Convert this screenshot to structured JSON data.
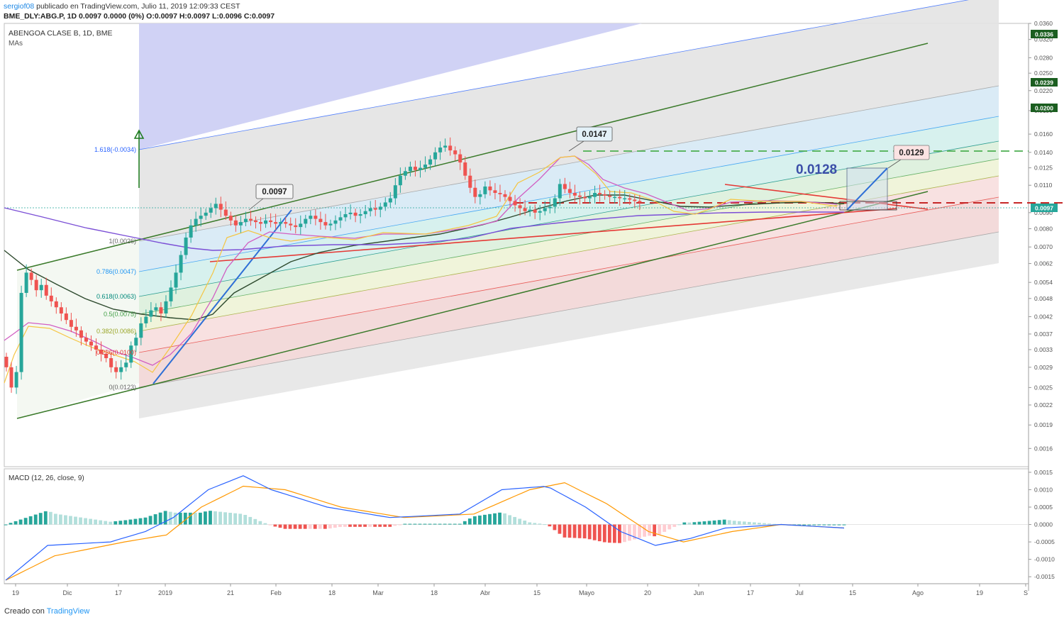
{
  "header": {
    "user": "sergiof08",
    "published": "publicado en TradingView.com, Julio 11, 2019 12:09:33 CEST",
    "ohlc_line": "BME_DLY:ABG.P, 1D 0.0097 0.0000 (0%) O:0.0097 H:0.0097 L:0.0096 C:0.0097"
  },
  "footer": {
    "prefix": "Creado con",
    "brand": "TradingView"
  },
  "colors": {
    "up": "#26a69a",
    "down": "#ef5350",
    "ma_fast": "#f5c542",
    "ma_mid": "#d15ec2",
    "ma_slow": "#2e4a2e",
    "ma_long": "#7b4fd6",
    "channel": "#3a7a2a",
    "trend_red": "#e53935",
    "trend_blue": "#2e6fd6",
    "macd": "#2962ff",
    "signal": "#ff9800"
  },
  "chart_data": [
    {
      "type": "candlestick",
      "title": "ABENGOA CLASE B, 1D, BME",
      "indicator_label": "MAs",
      "yscale": "log",
      "ylim": [
        0.0014,
        0.036
      ],
      "x_ticks": [
        "19",
        "Dic",
        "17",
        "2019",
        "21",
        "Feb",
        "18",
        "Mar",
        "18",
        "Abr",
        "15",
        "Mayo",
        "20",
        "Jun",
        "17",
        "Jul",
        "15",
        "Ago",
        "19",
        "S"
      ],
      "y_ticks": [
        "0.0360",
        "0.0320",
        "0.0280",
        "0.0250",
        "0.0220",
        "0.0190",
        "0.0160",
        "0.0140",
        "0.0125",
        "0.0110",
        "0.0090",
        "0.0080",
        "0.0070",
        "0.0062",
        "0.0054",
        "0.0048",
        "0.0042",
        "0.0037",
        "0.0033",
        "0.0029",
        "0.0025",
        "0.0022",
        "0.0019",
        "0.0016"
      ],
      "price_badges": [
        {
          "value": "0.0336",
          "color": "#1b5e20"
        },
        {
          "value": "0.0239",
          "color": "#1b5e20"
        },
        {
          "value": "0.0200",
          "color": "#1b5e20"
        },
        {
          "value": "0.0097",
          "color": "#26a69a"
        }
      ],
      "fib_levels": [
        {
          "label": "1.618(-0.0034)",
          "color": "#2962ff"
        },
        {
          "label": "1(0.0026)",
          "color": "#666666"
        },
        {
          "label": "0.786(0.0047)",
          "color": "#2196f3"
        },
        {
          "label": "0.618(0.0063)",
          "color": "#00897b"
        },
        {
          "label": "0.5(0.0075)",
          "color": "#43a047"
        },
        {
          "label": "0.382(0.0086)",
          "color": "#9aa628"
        },
        {
          "label": "0.236(0.0100)",
          "color": "#e53935"
        },
        {
          "label": "0(0.0123)",
          "color": "#666666"
        }
      ],
      "annotations": [
        "0.0097",
        "0.0147",
        "0.0129",
        "0.0128"
      ],
      "closes": [
        0.0029,
        0.0025,
        0.0028,
        0.005,
        0.0058,
        0.0055,
        0.0051,
        0.0053,
        0.0049,
        0.0047,
        0.0045,
        0.0043,
        0.0041,
        0.0039,
        0.0038,
        0.0036,
        0.0035,
        0.0034,
        0.0033,
        0.0032,
        0.0031,
        0.0029,
        0.0028,
        0.0029,
        0.003,
        0.0034,
        0.0036,
        0.004,
        0.0042,
        0.0044,
        0.0045,
        0.0043,
        0.0047,
        0.0052,
        0.0058,
        0.0066,
        0.0075,
        0.0082,
        0.0086,
        0.0088,
        0.009,
        0.0093,
        0.0096,
        0.0092,
        0.0088,
        0.0085,
        0.0082,
        0.0084,
        0.0086,
        0.0085,
        0.0084,
        0.0083,
        0.0085,
        0.0084,
        0.0083,
        0.0084,
        0.0083,
        0.0082,
        0.0081,
        0.0083,
        0.0086,
        0.0088,
        0.0086,
        0.0084,
        0.0082,
        0.0083,
        0.0085,
        0.0087,
        0.0089,
        0.009,
        0.0088,
        0.0089,
        0.0091,
        0.0093,
        0.0092,
        0.0094,
        0.0097,
        0.01,
        0.011,
        0.0118,
        0.0122,
        0.0126,
        0.0123,
        0.0125,
        0.0128,
        0.0133,
        0.014,
        0.0145,
        0.0147,
        0.0142,
        0.0138,
        0.013,
        0.0118,
        0.0108,
        0.0101,
        0.0103,
        0.0109,
        0.0106,
        0.0104,
        0.0103,
        0.0101,
        0.0098,
        0.0095,
        0.0093,
        0.0091,
        0.0092,
        0.009,
        0.0091,
        0.0093,
        0.0094,
        0.01,
        0.0111,
        0.0107,
        0.0104,
        0.0102,
        0.0101,
        0.01,
        0.0101,
        0.0104,
        0.0103,
        0.0102,
        0.0101,
        0.0101,
        0.01,
        0.01,
        0.0099,
        0.0098,
        0.0097
      ]
    },
    {
      "type": "line",
      "title": "MACD (12, 26, close, 9)",
      "ylim": [
        -0.0017,
        0.0016
      ],
      "y_ticks": [
        "0.0015",
        "0.0010",
        "0.0005",
        "0.0000",
        "-0.0005",
        "-0.0010",
        "-0.0015"
      ],
      "series": [
        {
          "role": "macd",
          "points": [
            [
              0,
              -0.0016
            ],
            [
              12,
              -0.0006
            ],
            [
              30,
              -0.0005
            ],
            [
              40,
              -0.0002
            ],
            [
              48,
              0.0002
            ],
            [
              58,
              0.001
            ],
            [
              68,
              0.0014
            ],
            [
              76,
              0.001
            ],
            [
              92,
              0.0005
            ],
            [
              110,
              0.0002
            ],
            [
              130,
              0.0003
            ],
            [
              142,
              0.001
            ],
            [
              155,
              0.0011
            ],
            [
              166,
              0.0005
            ],
            [
              176,
              -0.0002
            ],
            [
              186,
              -0.0006
            ],
            [
              196,
              -0.0004
            ],
            [
              206,
              -0.0001
            ],
            [
              222,
              0.0
            ],
            [
              240,
              -0.0001
            ]
          ]
        },
        {
          "role": "signal",
          "points": [
            [
              0,
              -0.0016
            ],
            [
              14,
              -0.0009
            ],
            [
              34,
              -0.0005
            ],
            [
              46,
              -0.0003
            ],
            [
              56,
              0.0005
            ],
            [
              68,
              0.0011
            ],
            [
              80,
              0.001
            ],
            [
              96,
              0.0005
            ],
            [
              114,
              0.0002
            ],
            [
              134,
              0.0003
            ],
            [
              150,
              0.001
            ],
            [
              160,
              0.0012
            ],
            [
              172,
              0.0006
            ],
            [
              184,
              -0.0002
            ],
            [
              194,
              -0.0005
            ],
            [
              208,
              -0.0002
            ],
            [
              222,
              0.0
            ],
            [
              240,
              -0.0001
            ]
          ]
        }
      ]
    }
  ]
}
